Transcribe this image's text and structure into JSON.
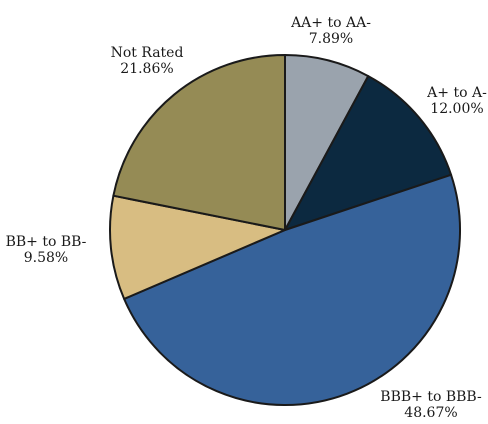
{
  "chart_data": {
    "type": "pie",
    "title": "",
    "start_angle_deg": 0,
    "direction": "clockwise",
    "slices": [
      {
        "category": "AA+ to AA-",
        "pct_label": "7.89%",
        "value": 7.89,
        "color": "#9aa3ad"
      },
      {
        "category": "A+ to A-",
        "pct_label": "12.00%",
        "value": 12.0,
        "color": "#0c2940"
      },
      {
        "category": "BBB+ to BBB-",
        "pct_label": "48.67%",
        "value": 48.67,
        "color": "#36629a"
      },
      {
        "category": "BB+ to BB-",
        "pct_label": "9.58%",
        "value": 9.58,
        "color": "#d8bd82"
      },
      {
        "category": "Not Rated",
        "pct_label": "21.86%",
        "value": 21.86,
        "color": "#958b55"
      }
    ],
    "edge_color": "#1a1a1a"
  }
}
